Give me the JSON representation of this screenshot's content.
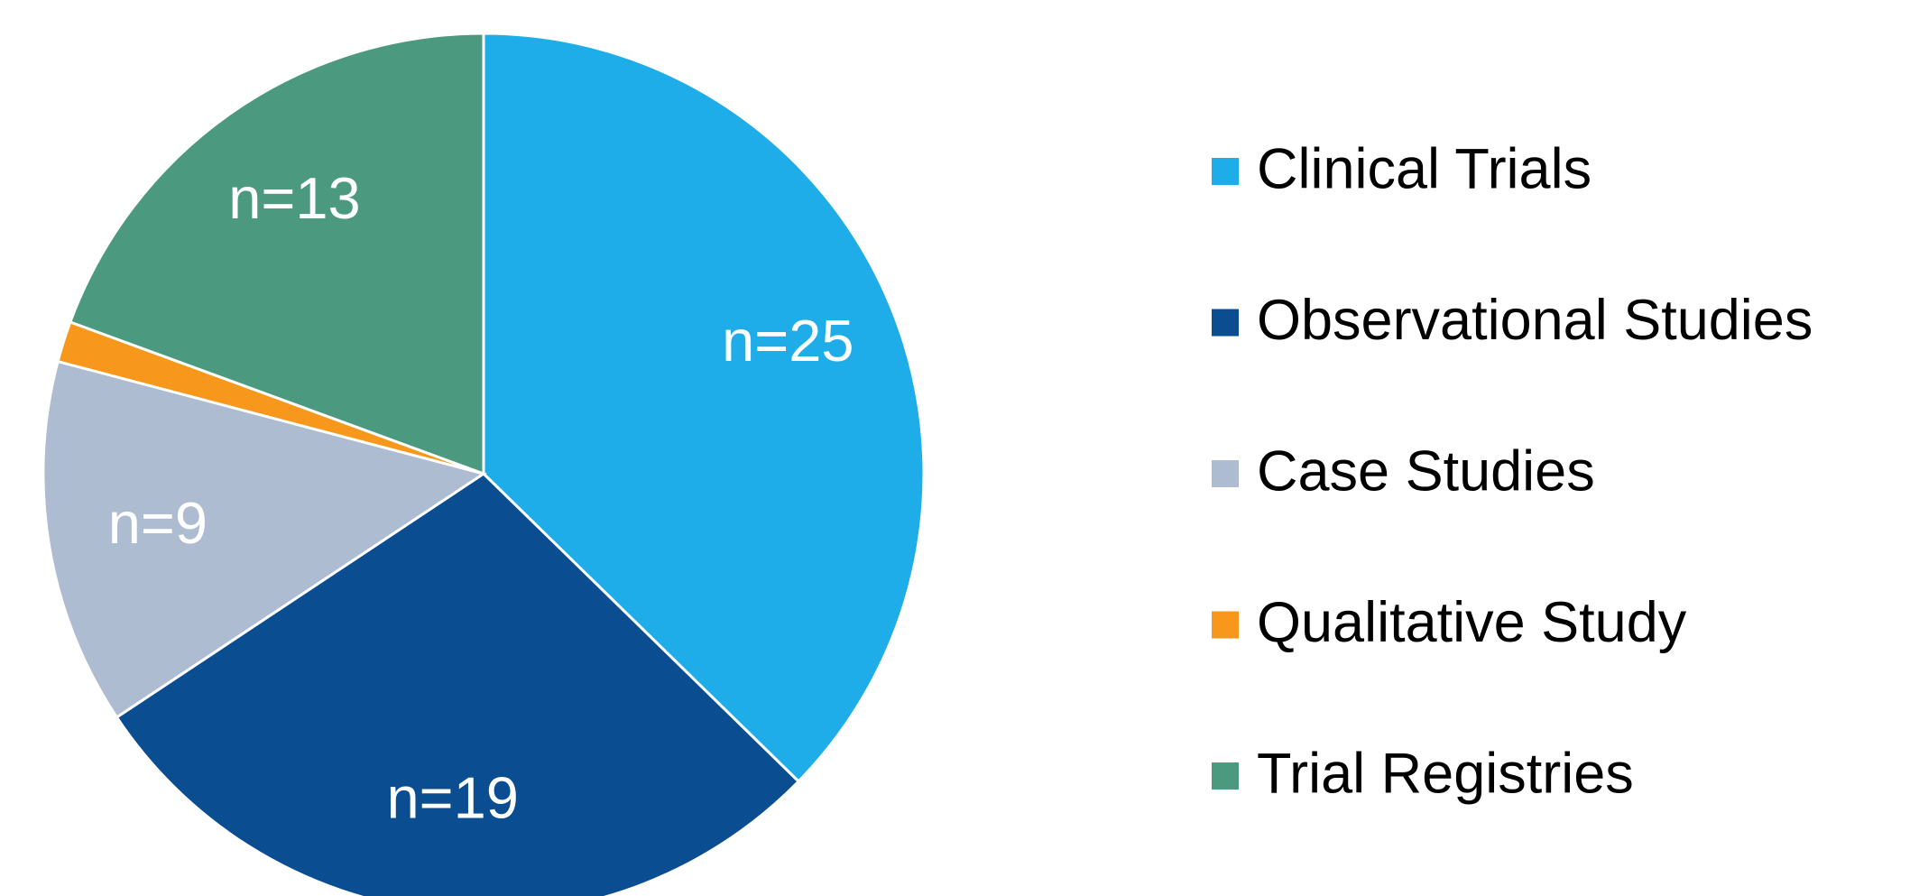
{
  "chart_data": {
    "type": "pie",
    "categories": [
      "Clinical Trials",
      "Observational Studies",
      "Case Studies",
      "Qualitative Study",
      "Trial Registries"
    ],
    "values": [
      25,
      19,
      9,
      1,
      13
    ],
    "value_labels": [
      "n=25",
      "n=19",
      "n=9",
      null,
      "n=13"
    ],
    "colors": [
      "#1fadea",
      "#0a4d91",
      "#adbcd0",
      "#f7981d",
      "#4b9a80"
    ],
    "legend": "right"
  }
}
